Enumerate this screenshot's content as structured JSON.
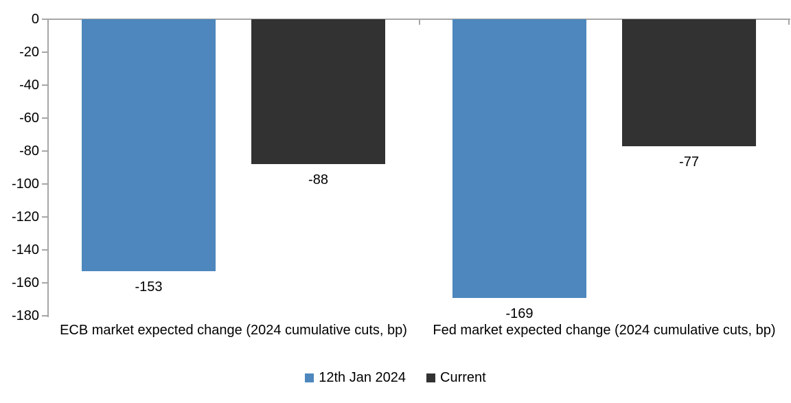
{
  "chart_data": {
    "type": "bar",
    "title": "",
    "categories": [
      "ECB market expected change (2024 cumulative cuts, bp)",
      "Fed market expected change (2024 cumulative cuts, bp)"
    ],
    "series": [
      {
        "name": "12th Jan 2024",
        "color": "#4d87bd",
        "values": [
          -153,
          -169
        ]
      },
      {
        "name": "Current",
        "color": "#323232",
        "values": [
          -88,
          -77
        ]
      }
    ],
    "yticks": [
      0,
      -20,
      -40,
      -60,
      -80,
      -100,
      -120,
      -140,
      -160,
      -180
    ],
    "ylim": [
      -180,
      0
    ],
    "xlabel": "",
    "ylabel": "",
    "grid": false,
    "data_labels": true,
    "legend_position": "bottom",
    "axis_color": "#a6a6a6",
    "background_color": "#ffffff",
    "text_color": "#000000"
  }
}
